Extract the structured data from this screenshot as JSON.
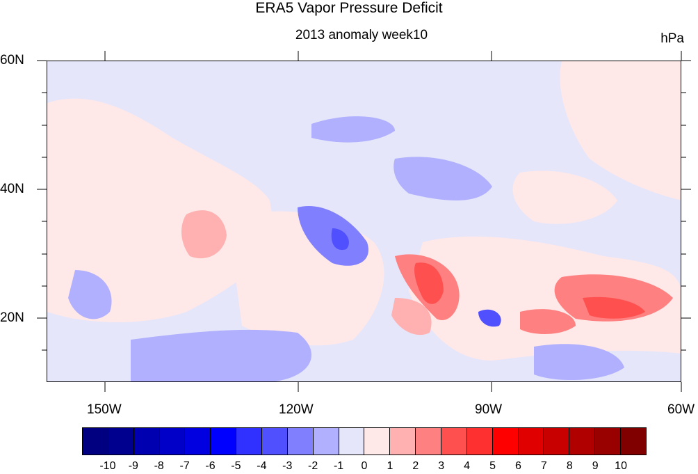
{
  "title": "ERA5 Vapor Pressure Deficit",
  "subtitle": "2013 anomaly week10",
  "units": "hPa",
  "map": {
    "lon_range": [
      -160,
      -60
    ],
    "lat_range": [
      10,
      60
    ],
    "lat_ticks": [
      {
        "value": 60,
        "label": "60N"
      },
      {
        "value": 40,
        "label": "40N"
      },
      {
        "value": 20,
        "label": "20N"
      }
    ],
    "lon_ticks": [
      {
        "value": -150,
        "label": "150W"
      },
      {
        "value": -120,
        "label": "120W"
      },
      {
        "value": -90,
        "label": "90W"
      },
      {
        "value": -60,
        "label": "60W"
      }
    ]
  },
  "colorbar": {
    "colors": [
      "#000080",
      "#00008f",
      "#0000b0",
      "#0000c8",
      "#0000e0",
      "#0000ff",
      "#3030ff",
      "#5050ff",
      "#8080ff",
      "#b0b0ff",
      "#e6e6fa",
      "#ffe8e8",
      "#ffb0b0",
      "#ff8080",
      "#ff5050",
      "#ff3030",
      "#ff0000",
      "#e00000",
      "#c80000",
      "#b00000",
      "#990000",
      "#800000"
    ],
    "labels": [
      "-10",
      "-9",
      "-8",
      "-7",
      "-6",
      "-5",
      "-4",
      "-3",
      "-2",
      "-1",
      "0",
      "1",
      "2",
      "3",
      "4",
      "5",
      "6",
      "7",
      "8",
      "9",
      "10"
    ]
  }
}
